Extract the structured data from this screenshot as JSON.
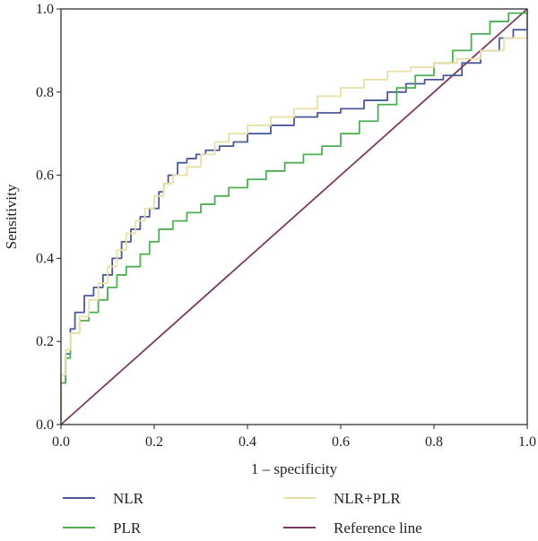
{
  "chart_data": {
    "type": "line",
    "xlabel": "1 – specificity",
    "ylabel": "Sensitivity",
    "xlim": [
      0,
      1
    ],
    "ylim": [
      0,
      1
    ],
    "xticks": [
      "0.0",
      "0.2",
      "0.4",
      "0.6",
      "0.8",
      "1.0"
    ],
    "yticks": [
      "0.0",
      "0.2",
      "0.4",
      "0.6",
      "0.8",
      "1.0"
    ],
    "grid": false,
    "legend_position": "bottom",
    "series": [
      {
        "name": "NLR",
        "color": "#4a5a96",
        "x": [
          0.0,
          0.0,
          0.01,
          0.02,
          0.03,
          0.05,
          0.07,
          0.09,
          0.11,
          0.13,
          0.15,
          0.17,
          0.19,
          0.21,
          0.22,
          0.23,
          0.25,
          0.27,
          0.29,
          0.31,
          0.34,
          0.37,
          0.4,
          0.45,
          0.5,
          0.55,
          0.6,
          0.65,
          0.7,
          0.74,
          0.78,
          0.82,
          0.86,
          0.9,
          0.94,
          0.97,
          1.0
        ],
        "y": [
          0.0,
          0.1,
          0.17,
          0.23,
          0.27,
          0.31,
          0.33,
          0.36,
          0.4,
          0.44,
          0.47,
          0.5,
          0.52,
          0.56,
          0.58,
          0.6,
          0.63,
          0.64,
          0.65,
          0.66,
          0.67,
          0.68,
          0.7,
          0.72,
          0.74,
          0.75,
          0.76,
          0.78,
          0.8,
          0.82,
          0.83,
          0.84,
          0.87,
          0.9,
          0.93,
          0.95,
          1.0
        ]
      },
      {
        "name": "PLR",
        "color": "#4caf50",
        "x": [
          0.0,
          0.0,
          0.01,
          0.02,
          0.04,
          0.06,
          0.08,
          0.1,
          0.12,
          0.14,
          0.17,
          0.19,
          0.21,
          0.24,
          0.27,
          0.3,
          0.33,
          0.36,
          0.4,
          0.44,
          0.48,
          0.52,
          0.56,
          0.6,
          0.64,
          0.68,
          0.72,
          0.76,
          0.8,
          0.84,
          0.88,
          0.92,
          0.96,
          1.0
        ],
        "y": [
          0.0,
          0.1,
          0.16,
          0.22,
          0.25,
          0.27,
          0.3,
          0.33,
          0.36,
          0.38,
          0.41,
          0.44,
          0.47,
          0.49,
          0.51,
          0.53,
          0.55,
          0.57,
          0.59,
          0.61,
          0.63,
          0.65,
          0.67,
          0.7,
          0.73,
          0.77,
          0.81,
          0.84,
          0.87,
          0.9,
          0.94,
          0.97,
          0.99,
          1.0
        ]
      },
      {
        "name": "NLR+PLR",
        "color": "#e8e0a6",
        "x": [
          0.0,
          0.0,
          0.01,
          0.02,
          0.04,
          0.06,
          0.08,
          0.1,
          0.12,
          0.14,
          0.16,
          0.18,
          0.2,
          0.22,
          0.24,
          0.27,
          0.3,
          0.33,
          0.36,
          0.4,
          0.45,
          0.5,
          0.55,
          0.6,
          0.65,
          0.7,
          0.75,
          0.8,
          0.85,
          0.9,
          0.95,
          1.0
        ],
        "y": [
          0.0,
          0.12,
          0.18,
          0.22,
          0.26,
          0.3,
          0.34,
          0.38,
          0.42,
          0.46,
          0.49,
          0.52,
          0.55,
          0.58,
          0.6,
          0.62,
          0.65,
          0.68,
          0.7,
          0.72,
          0.74,
          0.76,
          0.79,
          0.81,
          0.83,
          0.85,
          0.86,
          0.87,
          0.88,
          0.9,
          0.93,
          1.0
        ]
      },
      {
        "name": "Reference line",
        "color": "#7a3a63",
        "x": [
          0.0,
          1.0
        ],
        "y": [
          0.0,
          1.0
        ]
      }
    ]
  }
}
